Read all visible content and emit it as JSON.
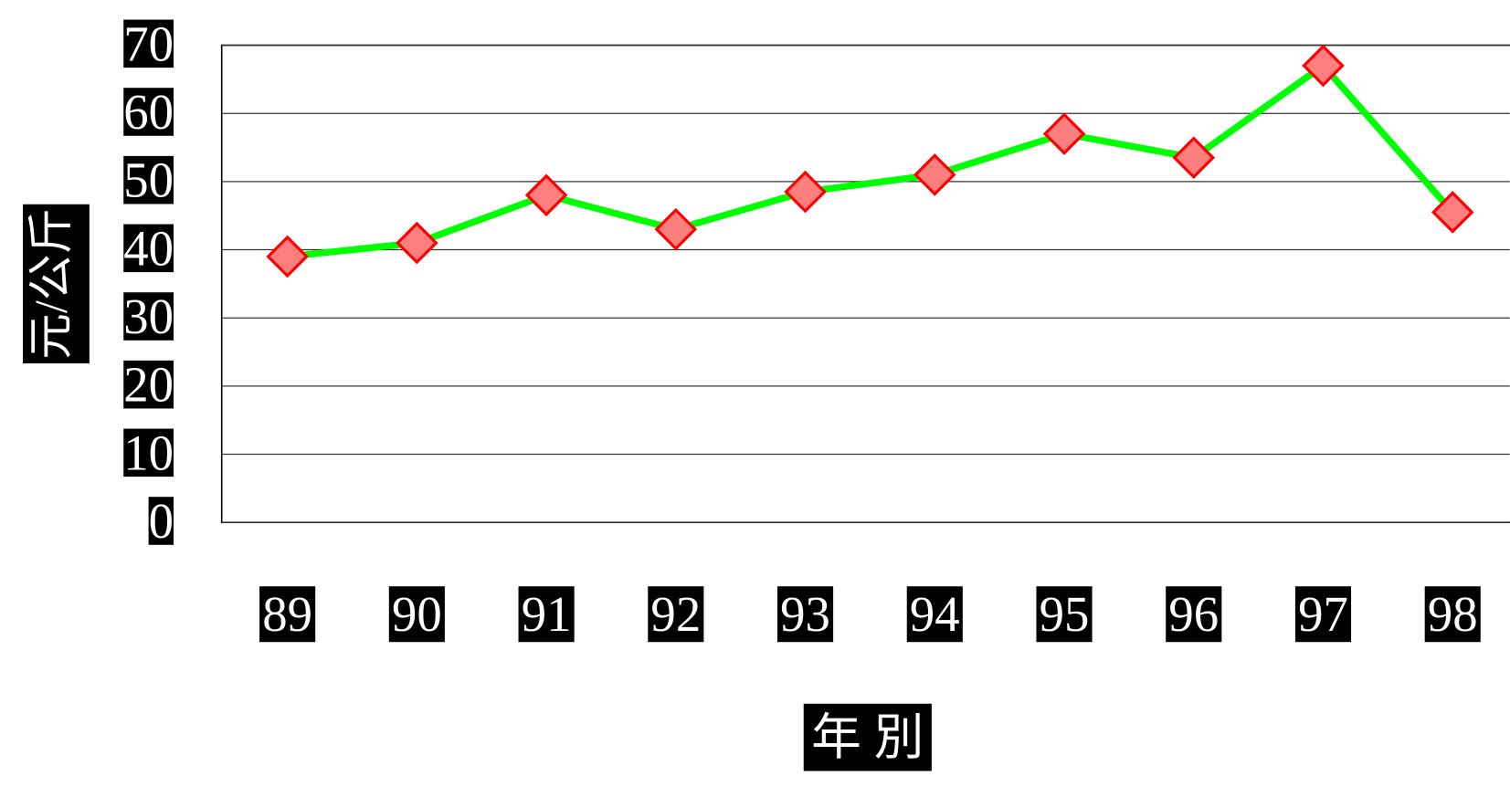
{
  "chart_data": {
    "type": "line",
    "y_label": "元/公斤",
    "x_label": "年 別",
    "categories": [
      "89",
      "90",
      "91",
      "92",
      "93",
      "94",
      "95",
      "96",
      "97",
      "98"
    ],
    "values": [
      39,
      41,
      48,
      43,
      48.5,
      51,
      57,
      53.5,
      67,
      45.5
    ],
    "color": "#00ff00",
    "marker_color": "#ff7f7f",
    "marker_edge": "#ff0000",
    "ylim": [
      0,
      70
    ],
    "yticks": [
      0,
      10,
      20,
      30,
      40,
      50,
      60,
      70
    ],
    "grid": true
  }
}
